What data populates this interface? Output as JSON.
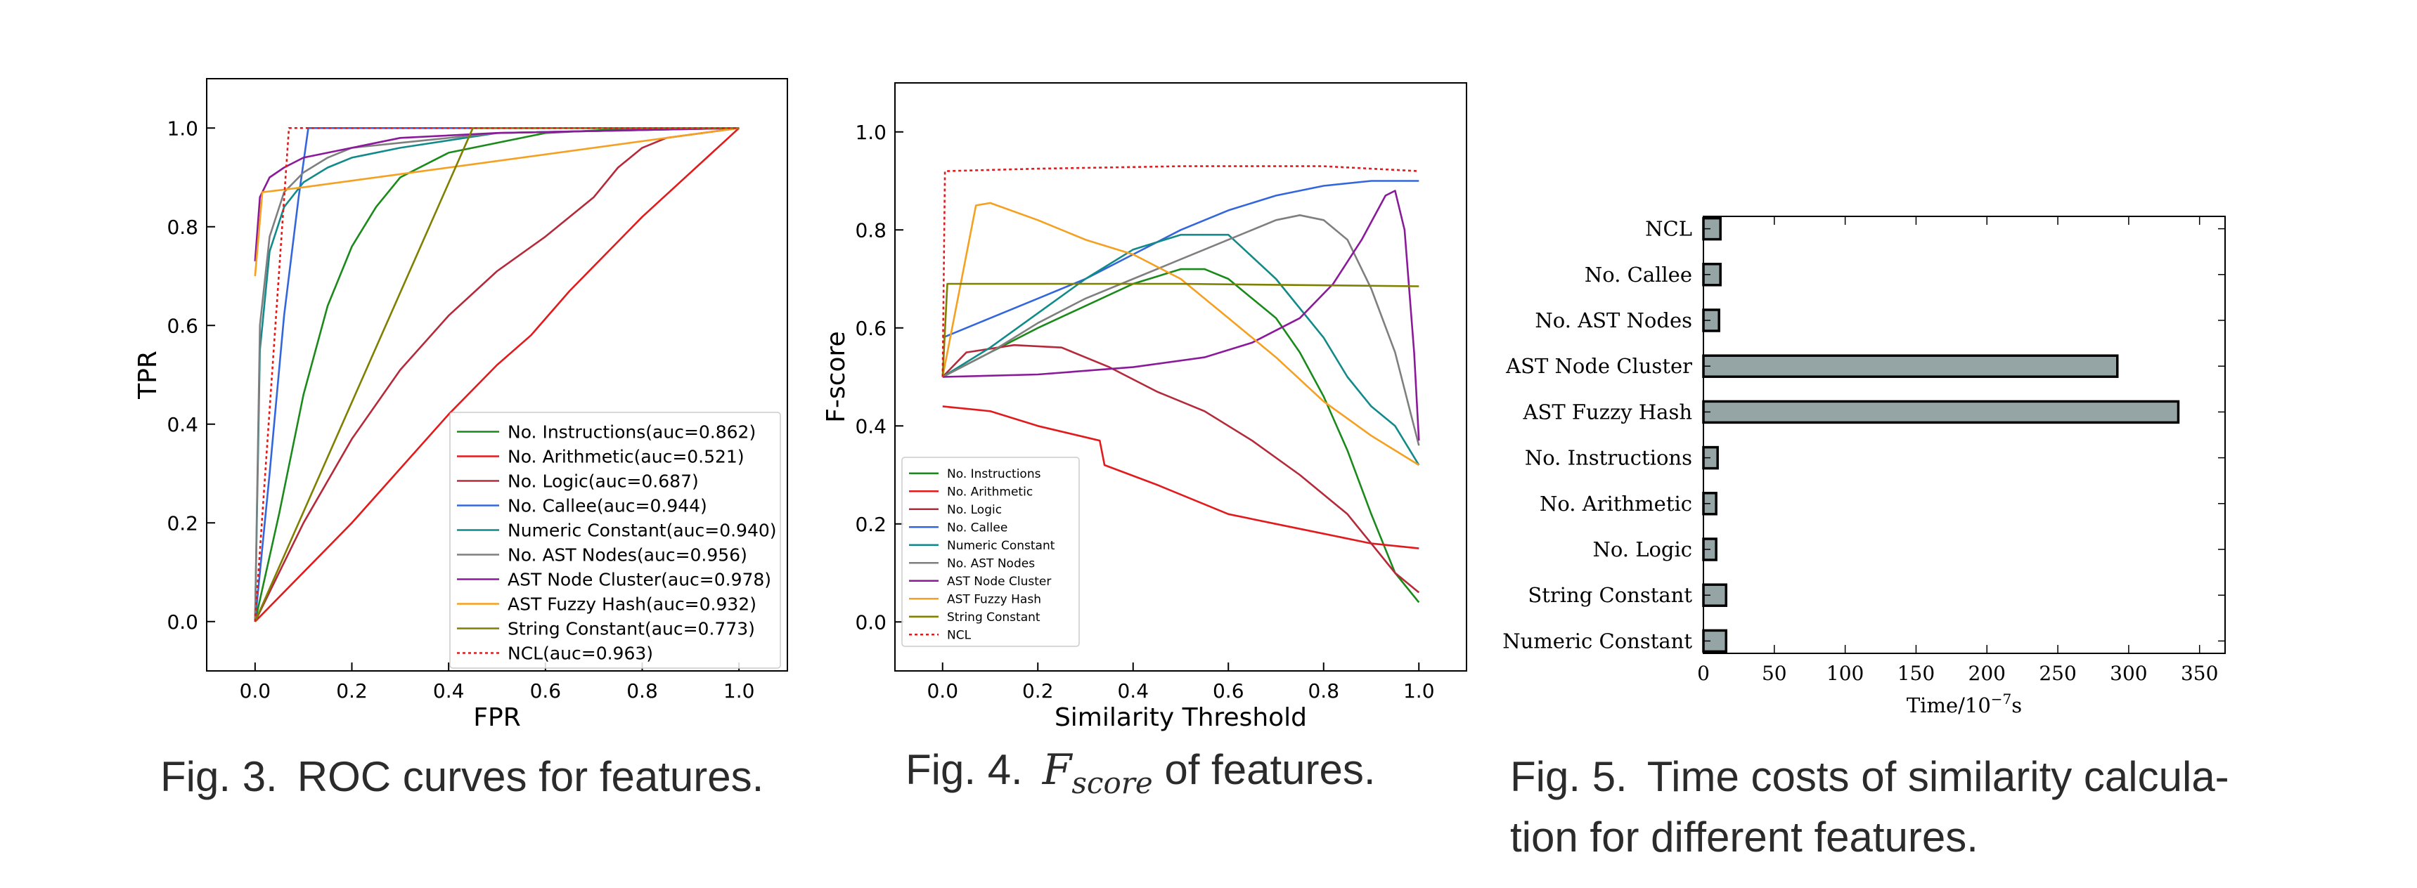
{
  "chart_data": [
    {
      "type": "line",
      "xlabel": "FPR",
      "ylabel": "TPR",
      "xlim": [
        -0.1,
        1.1
      ],
      "ylim": [
        -0.1,
        1.1
      ],
      "x_ticks": [
        "0.0",
        "0.2",
        "0.4",
        "0.6",
        "0.8",
        "1.0"
      ],
      "y_ticks": [
        "0.0",
        "0.2",
        "0.4",
        "0.6",
        "0.8",
        "1.0"
      ],
      "grid": false,
      "legend_position": "bottom-right",
      "series": [
        {
          "name": "No. Instructions(auc=0.862)",
          "color": "#1a8a1a",
          "dash": "",
          "points": [
            [
              0,
              0
            ],
            [
              0.05,
              0.22
            ],
            [
              0.1,
              0.46
            ],
            [
              0.15,
              0.64
            ],
            [
              0.2,
              0.76
            ],
            [
              0.25,
              0.84
            ],
            [
              0.3,
              0.9
            ],
            [
              0.4,
              0.95
            ],
            [
              0.6,
              0.99
            ],
            [
              0.8,
              1.0
            ],
            [
              1,
              1
            ]
          ]
        },
        {
          "name": "No. Arithmetic(auc=0.521)",
          "color": "#e31a1c",
          "dash": "",
          "points": [
            [
              0,
              0
            ],
            [
              0.2,
              0.2
            ],
            [
              0.4,
              0.42
            ],
            [
              0.5,
              0.52
            ],
            [
              0.57,
              0.58
            ],
            [
              0.65,
              0.67
            ],
            [
              0.8,
              0.82
            ],
            [
              1,
              1
            ]
          ]
        },
        {
          "name": "No. Logic(auc=0.687)",
          "color": "#b52a3a",
          "dash": "",
          "points": [
            [
              0,
              0
            ],
            [
              0.1,
              0.2
            ],
            [
              0.2,
              0.37
            ],
            [
              0.3,
              0.51
            ],
            [
              0.4,
              0.62
            ],
            [
              0.5,
              0.71
            ],
            [
              0.6,
              0.78
            ],
            [
              0.7,
              0.86
            ],
            [
              0.75,
              0.92
            ],
            [
              0.8,
              0.96
            ],
            [
              0.85,
              0.98
            ],
            [
              1,
              1
            ]
          ]
        },
        {
          "name": "No. Callee(auc=0.944)",
          "color": "#3366dd",
          "dash": "",
          "points": [
            [
              0,
              0
            ],
            [
              0.03,
              0.3
            ],
            [
              0.06,
              0.62
            ],
            [
              0.09,
              0.86
            ],
            [
              0.11,
              1.0
            ],
            [
              1,
              1
            ]
          ]
        },
        {
          "name": "Numeric Constant(auc=0.940)",
          "color": "#138a8a",
          "dash": "",
          "points": [
            [
              0,
              0
            ],
            [
              0.01,
              0.55
            ],
            [
              0.03,
              0.75
            ],
            [
              0.06,
              0.84
            ],
            [
              0.1,
              0.89
            ],
            [
              0.15,
              0.92
            ],
            [
              0.2,
              0.94
            ],
            [
              0.3,
              0.96
            ],
            [
              0.5,
              0.99
            ],
            [
              1,
              1
            ]
          ]
        },
        {
          "name": "No. AST Nodes(auc=0.956)",
          "color": "#7f7f7f",
          "dash": "",
          "points": [
            [
              0,
              0
            ],
            [
              0.01,
              0.6
            ],
            [
              0.03,
              0.78
            ],
            [
              0.06,
              0.87
            ],
            [
              0.1,
              0.91
            ],
            [
              0.15,
              0.94
            ],
            [
              0.2,
              0.96
            ],
            [
              0.3,
              0.97
            ],
            [
              0.5,
              0.99
            ],
            [
              1,
              1
            ]
          ]
        },
        {
          "name": "AST Node Cluster(auc=0.978)",
          "color": "#8b1a9b",
          "dash": "",
          "points": [
            [
              0,
              0.73
            ],
            [
              0.01,
              0.86
            ],
            [
              0.03,
              0.9
            ],
            [
              0.06,
              0.92
            ],
            [
              0.1,
              0.94
            ],
            [
              0.2,
              0.96
            ],
            [
              0.3,
              0.98
            ],
            [
              0.5,
              0.99
            ],
            [
              1,
              1
            ]
          ]
        },
        {
          "name": "AST Fuzzy Hash(auc=0.932)",
          "color": "#f5a020",
          "dash": "",
          "points": [
            [
              0,
              0.7
            ],
            [
              0.015,
              0.87
            ],
            [
              0.1,
              0.88
            ],
            [
              1,
              1
            ]
          ]
        },
        {
          "name": "String Constant(auc=0.773)",
          "color": "#7f7f00",
          "dash": "",
          "points": [
            [
              0,
              0
            ],
            [
              0.45,
              1.0
            ],
            [
              1,
              1
            ]
          ]
        },
        {
          "name": "NCL(auc=0.963)",
          "color": "#e31a1c",
          "dash": "4,4",
          "points": [
            [
              0,
              0
            ],
            [
              0.07,
              1.0
            ],
            [
              1,
              1
            ]
          ]
        }
      ]
    },
    {
      "type": "line",
      "xlabel": "Similarity Threshold",
      "ylabel": "F-score",
      "xlim": [
        -0.1,
        1.1
      ],
      "ylim": [
        -0.1,
        1.1
      ],
      "x_ticks": [
        "0.0",
        "0.2",
        "0.4",
        "0.6",
        "0.8",
        "1.0"
      ],
      "y_ticks": [
        "0.0",
        "0.2",
        "0.4",
        "0.6",
        "0.8",
        "1.0"
      ],
      "grid": false,
      "legend_position": "bottom-left",
      "series": [
        {
          "name": "No. Instructions",
          "color": "#1a8a1a",
          "dash": "",
          "points": [
            [
              0,
              0.5
            ],
            [
              0.1,
              0.55
            ],
            [
              0.2,
              0.6
            ],
            [
              0.3,
              0.645
            ],
            [
              0.4,
              0.69
            ],
            [
              0.5,
              0.72
            ],
            [
              0.55,
              0.72
            ],
            [
              0.6,
              0.7
            ],
            [
              0.7,
              0.62
            ],
            [
              0.75,
              0.55
            ],
            [
              0.8,
              0.46
            ],
            [
              0.85,
              0.35
            ],
            [
              0.9,
              0.22
            ],
            [
              0.95,
              0.1
            ],
            [
              1,
              0.04
            ]
          ]
        },
        {
          "name": "No. Arithmetic",
          "color": "#e31a1c",
          "dash": "",
          "points": [
            [
              0,
              0.44
            ],
            [
              0.1,
              0.43
            ],
            [
              0.2,
              0.4
            ],
            [
              0.33,
              0.37
            ],
            [
              0.34,
              0.32
            ],
            [
              0.45,
              0.28
            ],
            [
              0.6,
              0.22
            ],
            [
              0.7,
              0.2
            ],
            [
              0.8,
              0.18
            ],
            [
              0.9,
              0.16
            ],
            [
              1,
              0.15
            ]
          ]
        },
        {
          "name": "No. Logic",
          "color": "#b52a3a",
          "dash": "",
          "points": [
            [
              0,
              0.5
            ],
            [
              0.05,
              0.55
            ],
            [
              0.15,
              0.565
            ],
            [
              0.25,
              0.56
            ],
            [
              0.35,
              0.52
            ],
            [
              0.45,
              0.47
            ],
            [
              0.55,
              0.43
            ],
            [
              0.65,
              0.37
            ],
            [
              0.75,
              0.3
            ],
            [
              0.85,
              0.22
            ],
            [
              0.9,
              0.16
            ],
            [
              0.95,
              0.1
            ],
            [
              1,
              0.06
            ]
          ]
        },
        {
          "name": "No. Callee",
          "color": "#3366dd",
          "dash": "",
          "points": [
            [
              0,
              0.58
            ],
            [
              0.1,
              0.62
            ],
            [
              0.2,
              0.66
            ],
            [
              0.3,
              0.7
            ],
            [
              0.4,
              0.75
            ],
            [
              0.5,
              0.8
            ],
            [
              0.6,
              0.84
            ],
            [
              0.7,
              0.87
            ],
            [
              0.8,
              0.89
            ],
            [
              0.9,
              0.9
            ],
            [
              1,
              0.9
            ]
          ]
        },
        {
          "name": "Numeric Constant",
          "color": "#138a8a",
          "dash": "",
          "points": [
            [
              0,
              0.5
            ],
            [
              0.1,
              0.56
            ],
            [
              0.2,
              0.63
            ],
            [
              0.3,
              0.7
            ],
            [
              0.4,
              0.76
            ],
            [
              0.5,
              0.79
            ],
            [
              0.6,
              0.79
            ],
            [
              0.7,
              0.7
            ],
            [
              0.8,
              0.58
            ],
            [
              0.85,
              0.5
            ],
            [
              0.9,
              0.44
            ],
            [
              0.95,
              0.4
            ],
            [
              1,
              0.32
            ]
          ]
        },
        {
          "name": "No. AST Nodes",
          "color": "#7f7f7f",
          "dash": "",
          "points": [
            [
              0,
              0.5
            ],
            [
              0.1,
              0.55
            ],
            [
              0.2,
              0.61
            ],
            [
              0.3,
              0.66
            ],
            [
              0.4,
              0.7
            ],
            [
              0.5,
              0.74
            ],
            [
              0.6,
              0.78
            ],
            [
              0.7,
              0.82
            ],
            [
              0.75,
              0.83
            ],
            [
              0.8,
              0.82
            ],
            [
              0.85,
              0.78
            ],
            [
              0.9,
              0.68
            ],
            [
              0.95,
              0.55
            ],
            [
              1,
              0.36
            ]
          ]
        },
        {
          "name": "AST Node Cluster",
          "color": "#8b1a9b",
          "dash": "",
          "points": [
            [
              0,
              0.5
            ],
            [
              0.2,
              0.505
            ],
            [
              0.4,
              0.52
            ],
            [
              0.55,
              0.54
            ],
            [
              0.65,
              0.57
            ],
            [
              0.75,
              0.62
            ],
            [
              0.82,
              0.69
            ],
            [
              0.88,
              0.78
            ],
            [
              0.93,
              0.87
            ],
            [
              0.95,
              0.88
            ],
            [
              0.97,
              0.8
            ],
            [
              0.99,
              0.55
            ],
            [
              1,
              0.37
            ]
          ]
        },
        {
          "name": "AST Fuzzy Hash",
          "color": "#f5a020",
          "dash": "",
          "points": [
            [
              0,
              0.5
            ],
            [
              0.07,
              0.85
            ],
            [
              0.1,
              0.855
            ],
            [
              0.2,
              0.82
            ],
            [
              0.3,
              0.78
            ],
            [
              0.4,
              0.75
            ],
            [
              0.5,
              0.7
            ],
            [
              0.6,
              0.62
            ],
            [
              0.7,
              0.54
            ],
            [
              0.8,
              0.45
            ],
            [
              0.9,
              0.38
            ],
            [
              1,
              0.32
            ]
          ]
        },
        {
          "name": "String Constant",
          "color": "#7f7f00",
          "dash": "",
          "points": [
            [
              0,
              0.5
            ],
            [
              0.01,
              0.69
            ],
            [
              0.5,
              0.69
            ],
            [
              1,
              0.685
            ]
          ]
        },
        {
          "name": "NCL",
          "color": "#e31a1c",
          "dash": "4,4",
          "points": [
            [
              0,
              0.5
            ],
            [
              0.005,
              0.92
            ],
            [
              0.2,
              0.925
            ],
            [
              0.5,
              0.93
            ],
            [
              0.8,
              0.93
            ],
            [
              1,
              0.92
            ]
          ]
        }
      ]
    },
    {
      "type": "bar",
      "orientation": "horizontal",
      "categories": [
        "NCL",
        "No. Callee",
        "No. AST Nodes",
        "AST Node Cluster",
        "AST Fuzzy Hash",
        "No. Instructions",
        "No. Arithmetic",
        "No. Logic",
        "String Constant",
        "Numeric Constant"
      ],
      "values": [
        12,
        12,
        11,
        292,
        335,
        10,
        9,
        9,
        16,
        16
      ],
      "bar_color": "#95a5a6",
      "xlabel": "Time/10",
      "xlabel_exp": "−7",
      "xlabel_unit": "s",
      "xlim": [
        0,
        368
      ],
      "x_ticks": [
        "0",
        "50",
        "100",
        "150",
        "200",
        "250",
        "300",
        "350"
      ],
      "grid": false
    }
  ],
  "captions": {
    "fig3_num": "Fig. 3.",
    "fig3_text": "ROC curves for features.",
    "fig4_num": "Fig. 4.",
    "fig4_math": "F",
    "fig4_sub": "score",
    "fig4_text": "of features.",
    "fig5_num": "Fig. 5.",
    "fig5_line1": "Time costs of similarity calcula-",
    "fig5_line2": "tion for different features."
  }
}
